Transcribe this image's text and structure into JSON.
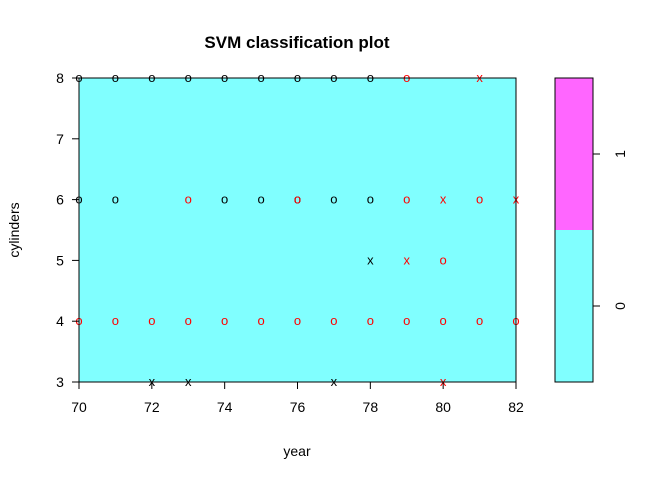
{
  "chart_data": {
    "type": "scatter",
    "title": "SVM classification plot",
    "xlabel": "year",
    "ylabel": "cylinders",
    "xlim": [
      70,
      82
    ],
    "ylim": [
      3,
      8
    ],
    "xticks": [
      70,
      72,
      74,
      76,
      78,
      80,
      82
    ],
    "yticks": [
      3,
      4,
      5,
      6,
      7,
      8
    ],
    "decision_region_class": "0",
    "region_colors": {
      "0": "#80FFFF",
      "1": "#FF66FF"
    },
    "legend": {
      "levels": [
        "0",
        "1"
      ],
      "colors": [
        "#80FFFF",
        "#FF66FF"
      ],
      "placement": "right"
    },
    "point_colors": {
      "0": "#000000",
      "1": "#FF0000"
    },
    "series": [
      {
        "color": "#000000",
        "points": [
          {
            "x": 70,
            "y": 8,
            "m": "o"
          },
          {
            "x": 71,
            "y": 8,
            "m": "o"
          },
          {
            "x": 72,
            "y": 8,
            "m": "o"
          },
          {
            "x": 73,
            "y": 8,
            "m": "o"
          },
          {
            "x": 74,
            "y": 8,
            "m": "o"
          },
          {
            "x": 75,
            "y": 8,
            "m": "o"
          },
          {
            "x": 76,
            "y": 8,
            "m": "o"
          },
          {
            "x": 77,
            "y": 8,
            "m": "o"
          },
          {
            "x": 78,
            "y": 8,
            "m": "o"
          },
          {
            "x": 70,
            "y": 6,
            "m": "o"
          },
          {
            "x": 71,
            "y": 6,
            "m": "o"
          },
          {
            "x": 74,
            "y": 6,
            "m": "o"
          },
          {
            "x": 75,
            "y": 6,
            "m": "o"
          },
          {
            "x": 76,
            "y": 6,
            "m": "o"
          },
          {
            "x": 77,
            "y": 6,
            "m": "o"
          },
          {
            "x": 78,
            "y": 6,
            "m": "o"
          },
          {
            "x": 78,
            "y": 5,
            "m": "x"
          },
          {
            "x": 72,
            "y": 3,
            "m": "x"
          },
          {
            "x": 73,
            "y": 3,
            "m": "x"
          },
          {
            "x": 77,
            "y": 3,
            "m": "x"
          }
        ]
      },
      {
        "color": "#FF0000",
        "points": [
          {
            "x": 79,
            "y": 8,
            "m": "o"
          },
          {
            "x": 81,
            "y": 8,
            "m": "x"
          },
          {
            "x": 73,
            "y": 6,
            "m": "o"
          },
          {
            "x": 76,
            "y": 6,
            "m": "o"
          },
          {
            "x": 79,
            "y": 6,
            "m": "o"
          },
          {
            "x": 80,
            "y": 6,
            "m": "x"
          },
          {
            "x": 81,
            "y": 6,
            "m": "o"
          },
          {
            "x": 82,
            "y": 6,
            "m": "x"
          },
          {
            "x": 79,
            "y": 5,
            "m": "x"
          },
          {
            "x": 80,
            "y": 5,
            "m": "o"
          },
          {
            "x": 70,
            "y": 4,
            "m": "o"
          },
          {
            "x": 71,
            "y": 4,
            "m": "o"
          },
          {
            "x": 72,
            "y": 4,
            "m": "o"
          },
          {
            "x": 73,
            "y": 4,
            "m": "o"
          },
          {
            "x": 74,
            "y": 4,
            "m": "o"
          },
          {
            "x": 75,
            "y": 4,
            "m": "o"
          },
          {
            "x": 76,
            "y": 4,
            "m": "o"
          },
          {
            "x": 77,
            "y": 4,
            "m": "o"
          },
          {
            "x": 78,
            "y": 4,
            "m": "o"
          },
          {
            "x": 79,
            "y": 4,
            "m": "o"
          },
          {
            "x": 80,
            "y": 4,
            "m": "o"
          },
          {
            "x": 81,
            "y": 4,
            "m": "o"
          },
          {
            "x": 82,
            "y": 4,
            "m": "o"
          },
          {
            "x": 80,
            "y": 3,
            "m": "x"
          }
        ]
      }
    ]
  }
}
